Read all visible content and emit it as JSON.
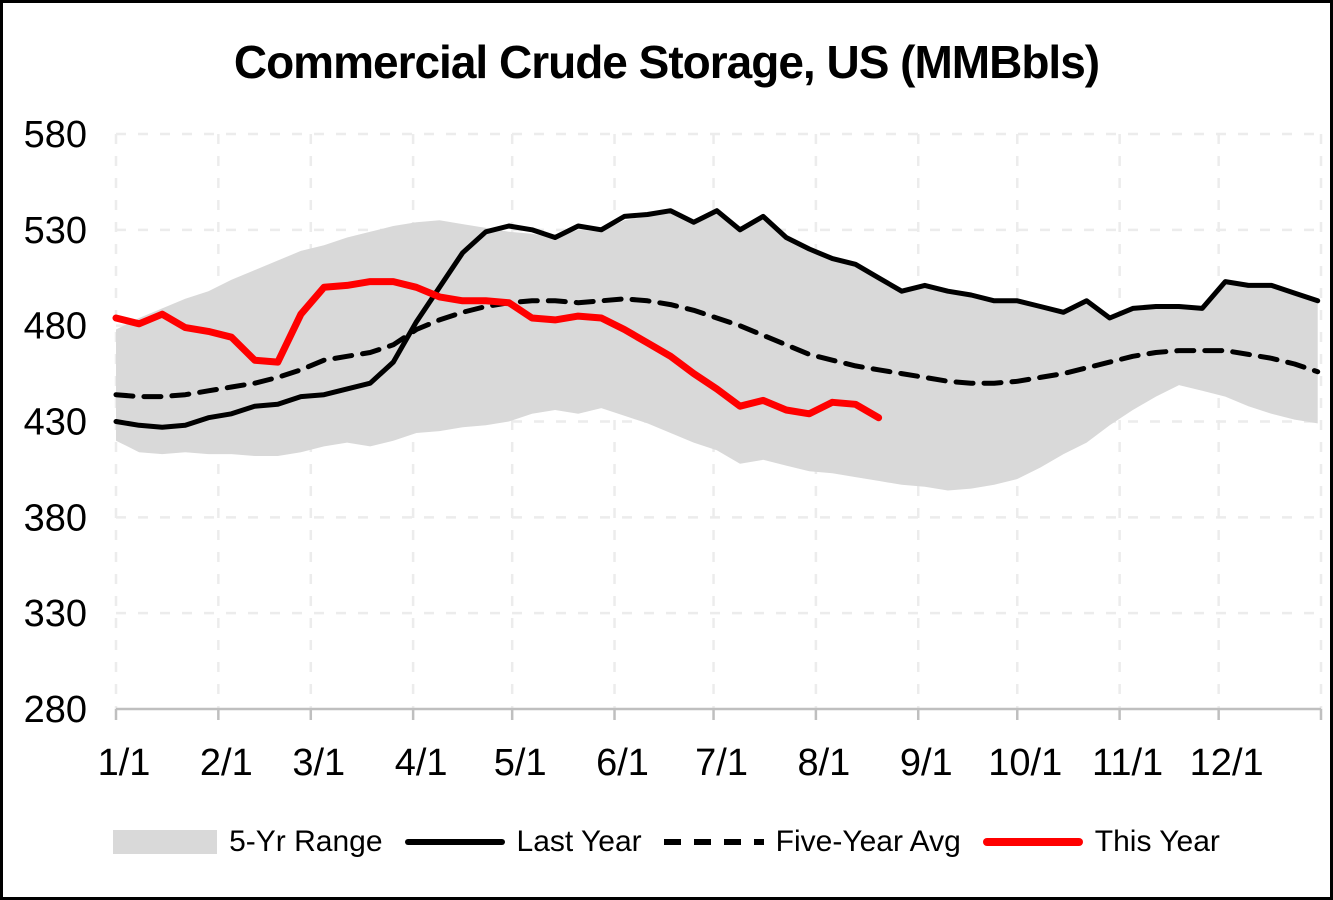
{
  "title": "Commercial Crude Storage, US (MMBbls)",
  "chart_data": {
    "type": "line",
    "title": "Commercial Crude Storage, US (MMBbls)",
    "ylabel": "",
    "xlabel": "",
    "ylim": [
      280,
      580
    ],
    "y_ticks": [
      580,
      530,
      480,
      430,
      380,
      330,
      280
    ],
    "y_tick_labels": [
      "580",
      "530",
      "480",
      "430",
      "380",
      "330",
      "280"
    ],
    "x_tick_labels": [
      "1/1",
      "2/1",
      "3/1",
      "4/1",
      "5/1",
      "6/1",
      "7/1",
      "8/1",
      "9/1",
      "10/1",
      "11/1",
      "12/1"
    ],
    "x_tick_days": [
      0,
      31,
      59,
      90,
      120,
      151,
      181,
      212,
      243,
      273,
      304,
      334
    ],
    "days_per_point": 7,
    "grid": "dashed-light",
    "legend_position": "bottom-center",
    "colors": {
      "band": "#d9d9d9",
      "grid": "#ececec",
      "axis": "#bfbfbf",
      "line": "#000000",
      "accent": "#ff0000",
      "background": "#ffffff",
      "text": "#000000"
    },
    "series": [
      {
        "name": "5-Yr Range",
        "type": "band",
        "upper": [
          478,
          484,
          489,
          494,
          498,
          504,
          509,
          514,
          519,
          522,
          526,
          529,
          532,
          534,
          535,
          533,
          531,
          529,
          528,
          526,
          530,
          529,
          535,
          537,
          539,
          533,
          539,
          529,
          536,
          525,
          519,
          514,
          511,
          504,
          497,
          500,
          497,
          495,
          492,
          492,
          489,
          486,
          492,
          483,
          488,
          489,
          489,
          488,
          502,
          500,
          500,
          496,
          492
        ],
        "lower": [
          420,
          414,
          413,
          414,
          413,
          413,
          412,
          412,
          414,
          417,
          419,
          417,
          420,
          424,
          425,
          427,
          428,
          430,
          434,
          436,
          434,
          437,
          433,
          429,
          424,
          419,
          415,
          408,
          410,
          407,
          404,
          403,
          401,
          399,
          397,
          396,
          394,
          395,
          397,
          400,
          406,
          413,
          419,
          428,
          436,
          443,
          449,
          446,
          443,
          438,
          434,
          431,
          429
        ]
      },
      {
        "name": "Last Year",
        "type": "line",
        "style": "solid",
        "width": 5,
        "values": [
          430,
          428,
          427,
          428,
          432,
          434,
          438,
          439,
          443,
          444,
          447,
          450,
          461,
          482,
          500,
          518,
          529,
          532,
          530,
          526,
          532,
          530,
          537,
          538,
          540,
          534,
          540,
          530,
          537,
          526,
          520,
          515,
          512,
          505,
          498,
          501,
          498,
          496,
          493,
          493,
          490,
          487,
          493,
          484,
          489,
          490,
          490,
          489,
          503,
          501,
          501,
          497,
          493
        ]
      },
      {
        "name": "Five-Year Avg",
        "type": "line",
        "style": "dashed",
        "width": 5,
        "values": [
          444,
          443,
          443,
          444,
          446,
          448,
          450,
          453,
          457,
          462,
          464,
          466,
          470,
          478,
          483,
          487,
          490,
          492,
          493,
          493,
          492,
          493,
          494,
          493,
          491,
          488,
          484,
          480,
          475,
          470,
          465,
          462,
          459,
          457,
          455,
          453,
          451,
          450,
          450,
          451,
          453,
          455,
          458,
          461,
          464,
          466,
          467,
          467,
          467,
          465,
          463,
          460,
          456
        ]
      },
      {
        "name": "This Year",
        "type": "line",
        "style": "solid",
        "width": 7,
        "accent": true,
        "values": [
          484,
          481,
          486,
          479,
          477,
          474,
          462,
          461,
          486,
          500,
          501,
          503,
          503,
          500,
          495,
          493,
          493,
          492,
          484,
          483,
          485,
          484,
          478,
          471,
          464,
          455,
          447,
          438,
          441,
          436,
          434,
          440,
          439,
          432
        ]
      }
    ],
    "legend": [
      {
        "key": "5-yr-range",
        "label": "5-Yr Range",
        "swatch": "band"
      },
      {
        "key": "last-year",
        "label": "Last Year",
        "swatch": "solid"
      },
      {
        "key": "five-year-avg",
        "label": "Five-Year Avg",
        "swatch": "dash"
      },
      {
        "key": "this-year",
        "label": "This Year",
        "swatch": "red"
      }
    ]
  }
}
